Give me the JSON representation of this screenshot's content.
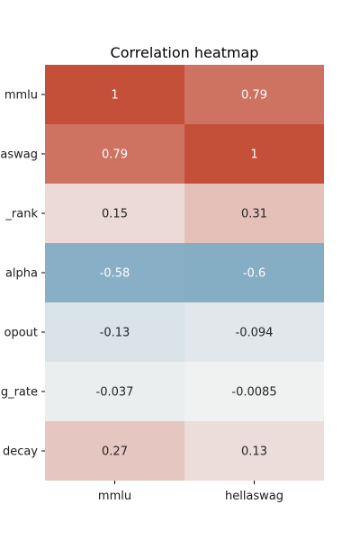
{
  "chart_data": {
    "type": "heatmap",
    "title": "Correlation heatmap",
    "columns": [
      "mmlu",
      "hellaswag"
    ],
    "rows": [
      "mmlu",
      "aswag",
      "_rank",
      "alpha",
      "opout",
      "g_rate",
      "decay"
    ],
    "values": [
      [
        1,
        0.79
      ],
      [
        0.79,
        1
      ],
      [
        0.15,
        0.31
      ],
      [
        -0.58,
        -0.6
      ],
      [
        -0.13,
        -0.094
      ],
      [
        -0.037,
        -0.0085
      ],
      [
        0.27,
        0.13
      ]
    ],
    "value_labels": [
      [
        "1",
        "0.79"
      ],
      [
        "0.79",
        "1"
      ],
      [
        "0.15",
        "0.31"
      ],
      [
        "-0.58",
        "-0.6"
      ],
      [
        "-0.13",
        "-0.094"
      ],
      [
        "-0.037",
        "-0.0085"
      ],
      [
        "0.27",
        "0.13"
      ]
    ],
    "colormap": {
      "negative": "#3d7fa6",
      "neutral": "#f2f2f2",
      "positive": "#c4503a",
      "vmin": -1,
      "vmax": 1
    },
    "colorbar": false
  }
}
